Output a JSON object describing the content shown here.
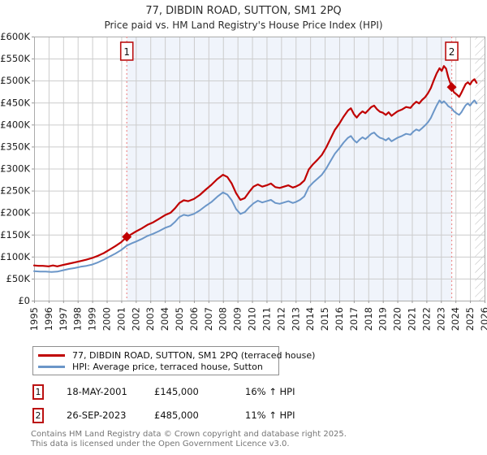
{
  "header": {
    "title": "77, DIBDIN ROAD, SUTTON, SM1 2PQ",
    "subtitle": "Price paid vs. HM Land Registry's House Price Index (HPI)"
  },
  "footer": {
    "line1": "Contains HM Land Registry data © Crown copyright and database right 2025.",
    "line2": "This data is licensed under the Open Government Licence v3.0."
  },
  "legend": {
    "items": [
      {
        "label": "77, DIBDIN ROAD, SUTTON, SM1 2PQ (terraced house)",
        "color": "#c00000"
      },
      {
        "label": "HPI: Average price, terraced house, Sutton",
        "color": "#6b96c8"
      }
    ]
  },
  "sales": [
    {
      "label": "1",
      "date": "18-MAY-2001",
      "price_label": "£145,000",
      "hpi_label": "16% ↑ HPI",
      "x": 2001.38,
      "price_k": 145
    },
    {
      "label": "2",
      "date": "26-SEP-2023",
      "price_label": "£485,000",
      "hpi_label": "11% ↑ HPI",
      "x": 2023.74,
      "price_k": 485
    }
  ],
  "chart_data": {
    "type": "line",
    "title": "77, DIBDIN ROAD, SUTTON, SM1 2PQ",
    "subtitle": "Price paid vs. HM Land Registry's House Price Index (HPI)",
    "x_range": [
      1995,
      2026
    ],
    "y_range_k": [
      0,
      600
    ],
    "y_units": "GBP thousands",
    "grid": true,
    "legend_position": "bottom",
    "shaded_region": [
      2001.38,
      2023.74
    ],
    "hatch_region": [
      2025.35,
      2026
    ],
    "colors": {
      "grid": "#cccccc",
      "border": "#ababab",
      "shade": "#f0f4fb",
      "sale_line": "#ee8f8f",
      "marker": "#c00000",
      "hatch": "#b9b9b9"
    },
    "y_ticks": [
      {
        "v": 0,
        "label": "£0"
      },
      {
        "v": 50,
        "label": "£50K"
      },
      {
        "v": 100,
        "label": "£100K"
      },
      {
        "v": 150,
        "label": "£150K"
      },
      {
        "v": 200,
        "label": "£200K"
      },
      {
        "v": 250,
        "label": "£250K"
      },
      {
        "v": 300,
        "label": "£300K"
      },
      {
        "v": 350,
        "label": "£350K"
      },
      {
        "v": 400,
        "label": "£400K"
      },
      {
        "v": 450,
        "label": "£450K"
      },
      {
        "v": 500,
        "label": "£500K"
      },
      {
        "v": 550,
        "label": "£550K"
      },
      {
        "v": 600,
        "label": "£600K"
      }
    ],
    "x_ticks": [
      "1995",
      "1996",
      "1997",
      "1998",
      "1999",
      "2000",
      "2001",
      "2002",
      "2003",
      "2004",
      "2005",
      "2006",
      "2007",
      "2008",
      "2009",
      "2010",
      "2011",
      "2012",
      "2013",
      "2014",
      "2015",
      "2016",
      "2017",
      "2018",
      "2019",
      "2020",
      "2021",
      "2022",
      "2023",
      "2024",
      "2025",
      "2026"
    ],
    "series": [
      {
        "name": "77, DIBDIN ROAD, SUTTON, SM1 2PQ (terraced house)",
        "color": "#c00000",
        "width": 2.2,
        "points": [
          [
            1995.0,
            80
          ],
          [
            1995.3,
            79
          ],
          [
            1995.6,
            79
          ],
          [
            1996.0,
            78
          ],
          [
            1996.3,
            80
          ],
          [
            1996.6,
            78
          ],
          [
            1997.0,
            81
          ],
          [
            1997.4,
            84
          ],
          [
            1997.8,
            87
          ],
          [
            1998.2,
            90
          ],
          [
            1998.6,
            93
          ],
          [
            1999.0,
            97
          ],
          [
            1999.4,
            102
          ],
          [
            1999.8,
            108
          ],
          [
            2000.2,
            116
          ],
          [
            2000.6,
            124
          ],
          [
            2001.0,
            133
          ],
          [
            2001.38,
            145
          ],
          [
            2001.7,
            151
          ],
          [
            2002.0,
            157
          ],
          [
            2002.4,
            164
          ],
          [
            2002.8,
            172
          ],
          [
            2003.2,
            178
          ],
          [
            2003.6,
            186
          ],
          [
            2004.0,
            194
          ],
          [
            2004.4,
            200
          ],
          [
            2004.7,
            210
          ],
          [
            2005.0,
            222
          ],
          [
            2005.3,
            228
          ],
          [
            2005.6,
            226
          ],
          [
            2006.0,
            231
          ],
          [
            2006.4,
            240
          ],
          [
            2006.8,
            252
          ],
          [
            2007.2,
            263
          ],
          [
            2007.6,
            276
          ],
          [
            2008.0,
            286
          ],
          [
            2008.3,
            281
          ],
          [
            2008.6,
            266
          ],
          [
            2008.9,
            244
          ],
          [
            2009.2,
            229
          ],
          [
            2009.5,
            233
          ],
          [
            2009.8,
            247
          ],
          [
            2010.1,
            259
          ],
          [
            2010.4,
            264
          ],
          [
            2010.7,
            259
          ],
          [
            2011.0,
            262
          ],
          [
            2011.3,
            266
          ],
          [
            2011.6,
            258
          ],
          [
            2011.9,
            256
          ],
          [
            2012.2,
            259
          ],
          [
            2012.5,
            262
          ],
          [
            2012.8,
            257
          ],
          [
            2013.0,
            259
          ],
          [
            2013.3,
            264
          ],
          [
            2013.6,
            273
          ],
          [
            2013.9,
            298
          ],
          [
            2014.2,
            310
          ],
          [
            2014.5,
            320
          ],
          [
            2014.8,
            331
          ],
          [
            2015.1,
            348
          ],
          [
            2015.4,
            368
          ],
          [
            2015.7,
            388
          ],
          [
            2016.0,
            402
          ],
          [
            2016.3,
            418
          ],
          [
            2016.6,
            432
          ],
          [
            2016.8,
            437
          ],
          [
            2017.0,
            424
          ],
          [
            2017.2,
            416
          ],
          [
            2017.4,
            424
          ],
          [
            2017.6,
            430
          ],
          [
            2017.8,
            426
          ],
          [
            2018.0,
            433
          ],
          [
            2018.2,
            440
          ],
          [
            2018.4,
            443
          ],
          [
            2018.6,
            435
          ],
          [
            2018.8,
            429
          ],
          [
            2019.0,
            427
          ],
          [
            2019.2,
            422
          ],
          [
            2019.4,
            428
          ],
          [
            2019.6,
            420
          ],
          [
            2019.8,
            425
          ],
          [
            2020.0,
            430
          ],
          [
            2020.3,
            434
          ],
          [
            2020.6,
            440
          ],
          [
            2020.9,
            438
          ],
          [
            2021.1,
            446
          ],
          [
            2021.3,
            452
          ],
          [
            2021.5,
            448
          ],
          [
            2021.7,
            456
          ],
          [
            2021.9,
            462
          ],
          [
            2022.1,
            471
          ],
          [
            2022.3,
            483
          ],
          [
            2022.5,
            500
          ],
          [
            2022.7,
            516
          ],
          [
            2022.9,
            528
          ],
          [
            2023.05,
            522
          ],
          [
            2023.2,
            533
          ],
          [
            2023.35,
            527
          ],
          [
            2023.5,
            508
          ],
          [
            2023.74,
            485
          ],
          [
            2023.9,
            473
          ],
          [
            2024.1,
            468
          ],
          [
            2024.25,
            463
          ],
          [
            2024.4,
            472
          ],
          [
            2024.55,
            482
          ],
          [
            2024.7,
            492
          ],
          [
            2024.85,
            496
          ],
          [
            2025.0,
            491
          ],
          [
            2025.15,
            499
          ],
          [
            2025.3,
            503
          ],
          [
            2025.45,
            495
          ]
        ]
      },
      {
        "name": "HPI: Average price, terraced house, Sutton",
        "color": "#6b96c8",
        "width": 2,
        "points": [
          [
            1995.0,
            67
          ],
          [
            1995.4,
            66
          ],
          [
            1995.8,
            66
          ],
          [
            1996.2,
            65
          ],
          [
            1996.6,
            66
          ],
          [
            1997.0,
            69
          ],
          [
            1997.4,
            72
          ],
          [
            1997.8,
            74
          ],
          [
            1998.2,
            77
          ],
          [
            1998.6,
            79
          ],
          [
            1999.0,
            82
          ],
          [
            1999.4,
            87
          ],
          [
            1999.8,
            93
          ],
          [
            2000.2,
            100
          ],
          [
            2000.6,
            107
          ],
          [
            2001.0,
            115
          ],
          [
            2001.38,
            125
          ],
          [
            2001.7,
            130
          ],
          [
            2002.0,
            134
          ],
          [
            2002.4,
            140
          ],
          [
            2002.8,
            147
          ],
          [
            2003.2,
            152
          ],
          [
            2003.6,
            158
          ],
          [
            2004.0,
            165
          ],
          [
            2004.4,
            170
          ],
          [
            2004.7,
            179
          ],
          [
            2005.0,
            190
          ],
          [
            2005.3,
            195
          ],
          [
            2005.6,
            193
          ],
          [
            2006.0,
            197
          ],
          [
            2006.4,
            205
          ],
          [
            2006.8,
            215
          ],
          [
            2007.2,
            224
          ],
          [
            2007.6,
            236
          ],
          [
            2008.0,
            246
          ],
          [
            2008.3,
            241
          ],
          [
            2008.6,
            228
          ],
          [
            2008.9,
            208
          ],
          [
            2009.2,
            197
          ],
          [
            2009.5,
            201
          ],
          [
            2009.8,
            212
          ],
          [
            2010.1,
            221
          ],
          [
            2010.4,
            227
          ],
          [
            2010.7,
            223
          ],
          [
            2011.0,
            226
          ],
          [
            2011.3,
            229
          ],
          [
            2011.6,
            222
          ],
          [
            2011.9,
            220
          ],
          [
            2012.2,
            223
          ],
          [
            2012.5,
            226
          ],
          [
            2012.8,
            222
          ],
          [
            2013.0,
            224
          ],
          [
            2013.3,
            229
          ],
          [
            2013.6,
            237
          ],
          [
            2013.9,
            258
          ],
          [
            2014.2,
            268
          ],
          [
            2014.5,
            277
          ],
          [
            2014.8,
            286
          ],
          [
            2015.1,
            300
          ],
          [
            2015.4,
            317
          ],
          [
            2015.7,
            334
          ],
          [
            2016.0,
            346
          ],
          [
            2016.3,
            359
          ],
          [
            2016.6,
            370
          ],
          [
            2016.8,
            374
          ],
          [
            2017.0,
            365
          ],
          [
            2017.2,
            359
          ],
          [
            2017.4,
            366
          ],
          [
            2017.6,
            371
          ],
          [
            2017.8,
            367
          ],
          [
            2018.0,
            373
          ],
          [
            2018.2,
            379
          ],
          [
            2018.4,
            382
          ],
          [
            2018.6,
            375
          ],
          [
            2018.8,
            370
          ],
          [
            2019.0,
            368
          ],
          [
            2019.2,
            364
          ],
          [
            2019.4,
            369
          ],
          [
            2019.6,
            362
          ],
          [
            2019.8,
            366
          ],
          [
            2020.0,
            370
          ],
          [
            2020.3,
            374
          ],
          [
            2020.6,
            379
          ],
          [
            2020.9,
            377
          ],
          [
            2021.1,
            384
          ],
          [
            2021.3,
            389
          ],
          [
            2021.5,
            386
          ],
          [
            2021.7,
            392
          ],
          [
            2021.9,
            398
          ],
          [
            2022.1,
            405
          ],
          [
            2022.3,
            415
          ],
          [
            2022.5,
            429
          ],
          [
            2022.7,
            443
          ],
          [
            2022.9,
            455
          ],
          [
            2023.05,
            449
          ],
          [
            2023.2,
            453
          ],
          [
            2023.35,
            448
          ],
          [
            2023.5,
            442
          ],
          [
            2023.74,
            437
          ],
          [
            2023.9,
            430
          ],
          [
            2024.1,
            425
          ],
          [
            2024.25,
            422
          ],
          [
            2024.4,
            428
          ],
          [
            2024.55,
            436
          ],
          [
            2024.7,
            444
          ],
          [
            2024.85,
            448
          ],
          [
            2025.0,
            443
          ],
          [
            2025.15,
            450
          ],
          [
            2025.3,
            455
          ],
          [
            2025.45,
            448
          ]
        ]
      }
    ]
  }
}
